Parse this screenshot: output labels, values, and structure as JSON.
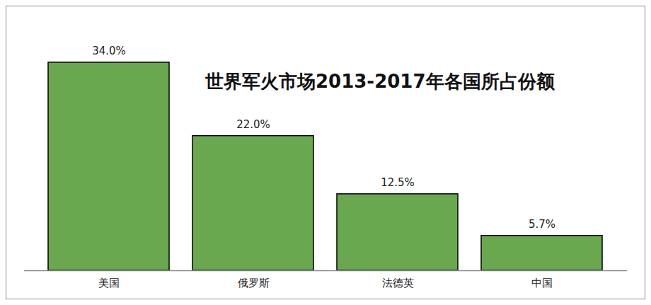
{
  "chart_data": {
    "type": "bar",
    "title": "世界军火市场2013-2017年各国所占份额",
    "categories": [
      "美国",
      "俄罗斯",
      "法德英",
      "中国"
    ],
    "values": [
      34.0,
      22.0,
      12.5,
      5.7
    ],
    "value_labels": [
      "34.0%",
      "22.0%",
      "12.5%",
      "5.7%"
    ],
    "color": "#6aa84f",
    "ylim": [
      0,
      40
    ],
    "data_labels": true,
    "tick_labels": "x",
    "grid": false
  }
}
